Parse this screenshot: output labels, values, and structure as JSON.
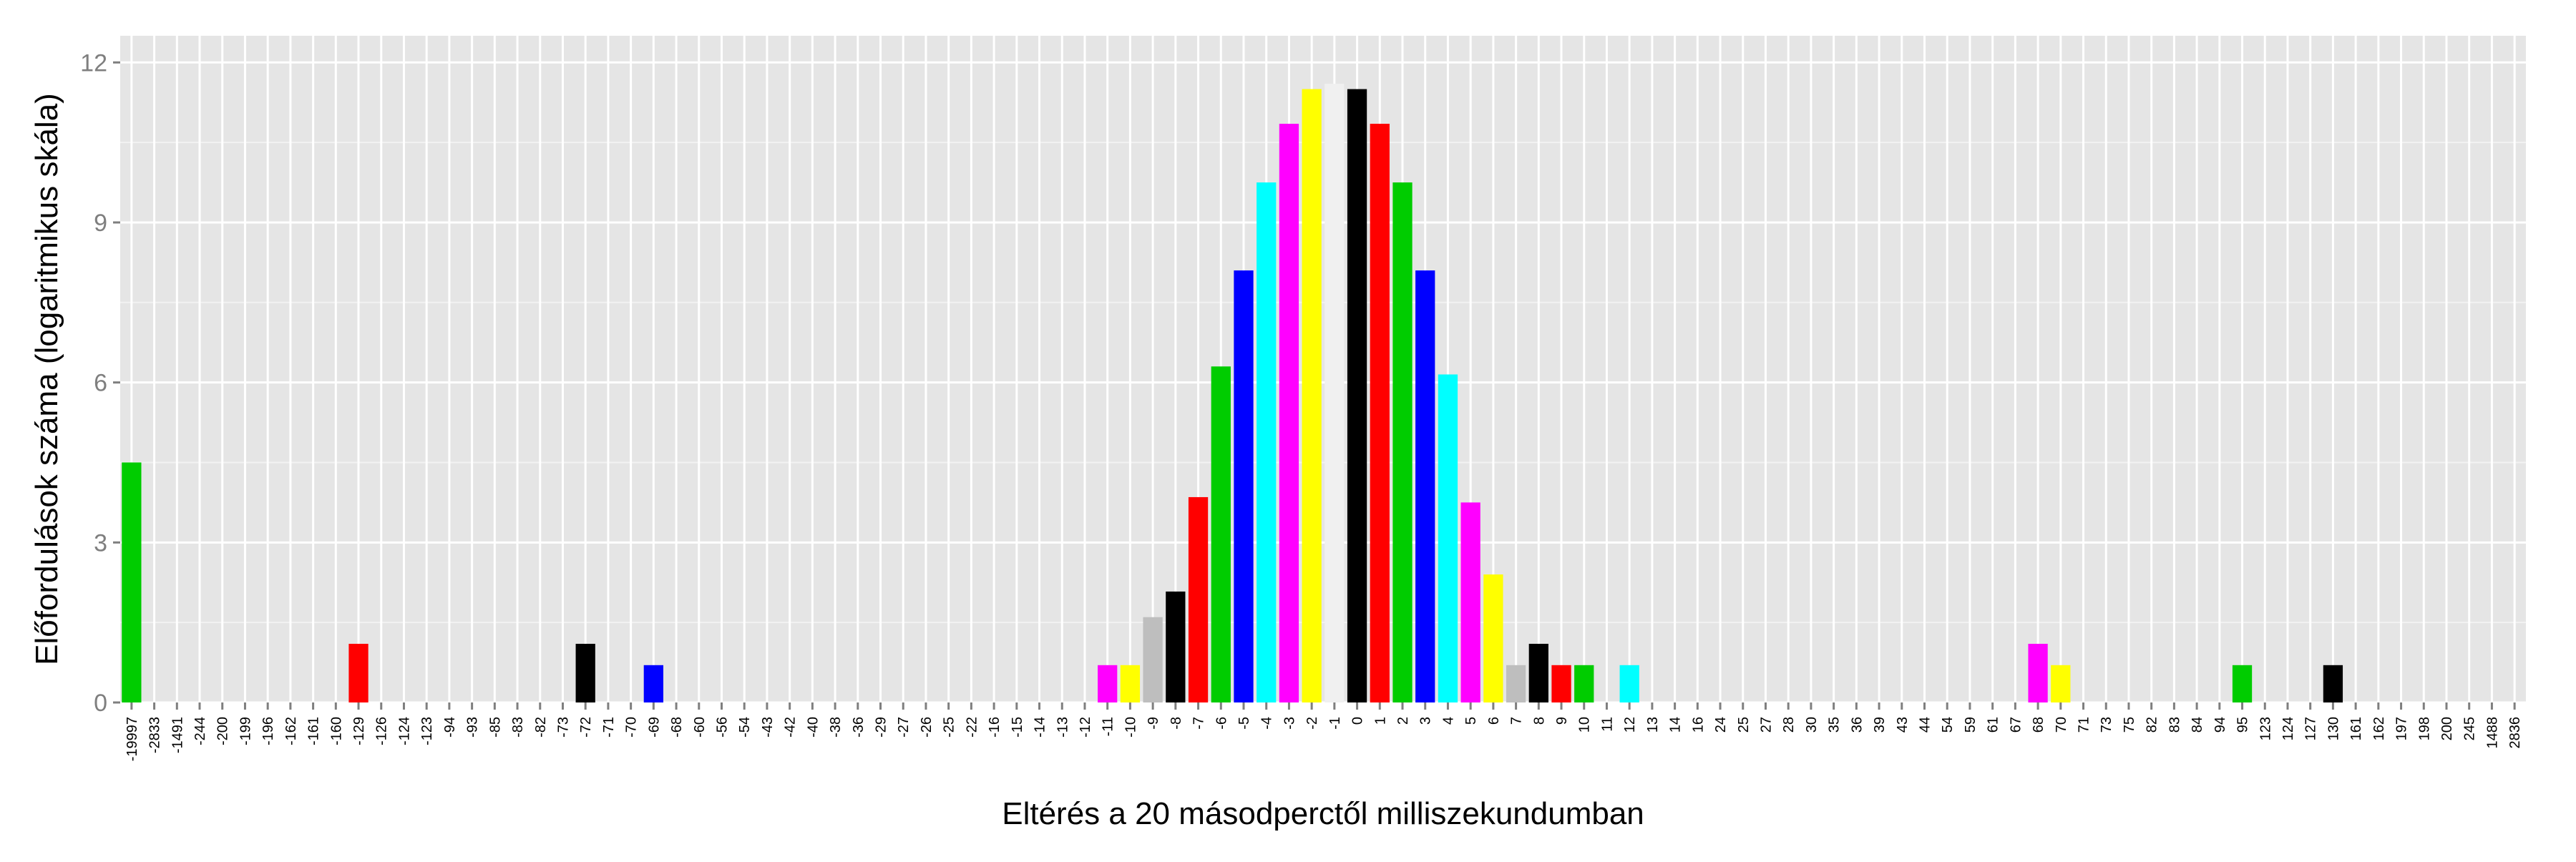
{
  "chart_data": {
    "type": "bar",
    "title": "",
    "xlabel": "Eltérés a 20 másodperctől milliszekundumban",
    "ylabel": "Előfordulások száma (logaritmikus skála)",
    "ylim": [
      0,
      12.5
    ],
    "yticks": [
      0,
      3,
      6,
      9,
      12
    ],
    "grid": true,
    "legend": "none",
    "categories": [
      "-19997",
      "-2833",
      "-1491",
      "-244",
      "-200",
      "-199",
      "-196",
      "-162",
      "-161",
      "-160",
      "-129",
      "-126",
      "-124",
      "-123",
      "-94",
      "-93",
      "-85",
      "-83",
      "-82",
      "-73",
      "-72",
      "-71",
      "-70",
      "-69",
      "-68",
      "-60",
      "-56",
      "-54",
      "-43",
      "-42",
      "-40",
      "-38",
      "-36",
      "-29",
      "-27",
      "-26",
      "-25",
      "-22",
      "-16",
      "-15",
      "-14",
      "-13",
      "-12",
      "-11",
      "-10",
      "-9",
      "-8",
      "-7",
      "-6",
      "-5",
      "-4",
      "-3",
      "-2",
      "-1",
      "0",
      "1",
      "2",
      "3",
      "4",
      "5",
      "6",
      "7",
      "8",
      "9",
      "10",
      "11",
      "12",
      "13",
      "14",
      "16",
      "24",
      "25",
      "27",
      "28",
      "30",
      "35",
      "36",
      "39",
      "43",
      "44",
      "54",
      "59",
      "61",
      "67",
      "68",
      "70",
      "71",
      "73",
      "75",
      "82",
      "83",
      "84",
      "94",
      "95",
      "123",
      "124",
      "127",
      "130",
      "161",
      "162",
      "197",
      "198",
      "200",
      "245",
      "1488",
      "2836"
    ],
    "bars": [
      {
        "category": "-19997",
        "value": 4.5,
        "color": "#00cc00"
      },
      {
        "category": "-129",
        "value": 1.1,
        "color": "#ff0000"
      },
      {
        "category": "-72",
        "value": 1.1,
        "color": "#000000"
      },
      {
        "category": "-69",
        "value": 0.7,
        "color": "#0000ff"
      },
      {
        "category": "-11",
        "value": 0.7,
        "color": "#ff00ff"
      },
      {
        "category": "-10",
        "value": 0.7,
        "color": "#ffff00"
      },
      {
        "category": "-9",
        "value": 1.6,
        "color": "#bebebe"
      },
      {
        "category": "-8",
        "value": 2.08,
        "color": "#000000"
      },
      {
        "category": "-7",
        "value": 3.85,
        "color": "#ff0000"
      },
      {
        "category": "-6",
        "value": 6.3,
        "color": "#00cc00"
      },
      {
        "category": "-5",
        "value": 8.1,
        "color": "#0000ff"
      },
      {
        "category": "-4",
        "value": 9.75,
        "color": "#00ffff"
      },
      {
        "category": "-3",
        "value": 10.85,
        "color": "#ff00ff"
      },
      {
        "category": "-2",
        "value": 11.5,
        "color": "#ffff00"
      },
      {
        "category": "-1",
        "value": 11.6,
        "color": "#f0f0f0"
      },
      {
        "category": "0",
        "value": 11.5,
        "color": "#000000"
      },
      {
        "category": "1",
        "value": 10.85,
        "color": "#ff0000"
      },
      {
        "category": "2",
        "value": 9.75,
        "color": "#00cc00"
      },
      {
        "category": "3",
        "value": 8.1,
        "color": "#0000ff"
      },
      {
        "category": "4",
        "value": 6.15,
        "color": "#00ffff"
      },
      {
        "category": "5",
        "value": 3.75,
        "color": "#ff00ff"
      },
      {
        "category": "6",
        "value": 2.4,
        "color": "#ffff00"
      },
      {
        "category": "7",
        "value": 0.7,
        "color": "#bebebe"
      },
      {
        "category": "8",
        "value": 1.1,
        "color": "#000000"
      },
      {
        "category": "9",
        "value": 0.7,
        "color": "#ff0000"
      },
      {
        "category": "10",
        "value": 0.7,
        "color": "#00cc00"
      },
      {
        "category": "12",
        "value": 0.7,
        "color": "#00ffff"
      },
      {
        "category": "68",
        "value": 1.1,
        "color": "#ff00ff"
      },
      {
        "category": "70",
        "value": 0.7,
        "color": "#ffff00"
      },
      {
        "category": "95",
        "value": 0.7,
        "color": "#00cc00"
      },
      {
        "category": "130",
        "value": 0.7,
        "color": "#000000"
      }
    ]
  }
}
